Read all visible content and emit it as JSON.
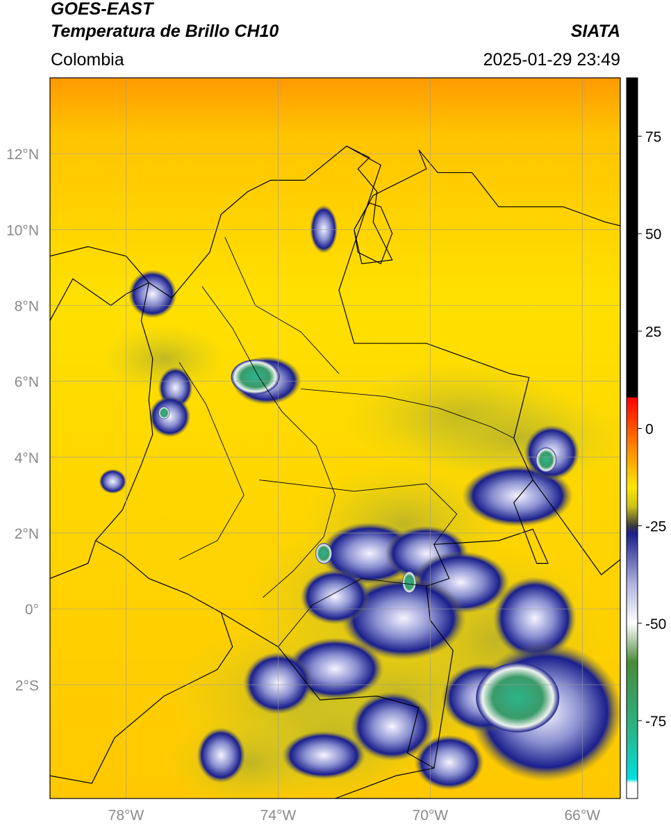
{
  "header": {
    "title": "GOES-EAST",
    "subtitle": "Temperatura de Brillo CH10",
    "org": "SIATA",
    "region": "Colombia",
    "datetime": "2025-01-29 23:49"
  },
  "map": {
    "lon_range": [
      -80,
      -65
    ],
    "lat_range": [
      -5,
      14
    ],
    "lat_ticks": [
      {
        "value": 12,
        "label": "12°N"
      },
      {
        "value": 10,
        "label": "10°N"
      },
      {
        "value": 8,
        "label": "8°N"
      },
      {
        "value": 6,
        "label": "6°N"
      },
      {
        "value": 4,
        "label": "4°N"
      },
      {
        "value": 2,
        "label": "2°N"
      },
      {
        "value": 0,
        "label": "0°"
      },
      {
        "value": -2,
        "label": "2°S"
      }
    ],
    "lon_ticks": [
      {
        "value": -78,
        "label": "78°W"
      },
      {
        "value": -74,
        "label": "74°W"
      },
      {
        "value": -70,
        "label": "70°W"
      },
      {
        "value": -66,
        "label": "66°W"
      }
    ],
    "gridlines": true,
    "colors": {
      "background": "#ffd200",
      "cold_cloud": "#1a1f8c",
      "coldest": "#2bb58a",
      "grid": "#9a9a9a"
    }
  },
  "colorbar": {
    "range": [
      -95,
      90
    ],
    "ticks": [
      {
        "value": 75,
        "label": "75"
      },
      {
        "value": 50,
        "label": "50"
      },
      {
        "value": 25,
        "label": "25"
      },
      {
        "value": 0,
        "label": "0"
      },
      {
        "value": -25,
        "label": "-25"
      },
      {
        "value": -50,
        "label": "-50"
      },
      {
        "value": -75,
        "label": "-75"
      }
    ],
    "stops": [
      {
        "value": 90,
        "color": "#000000"
      },
      {
        "value": 8,
        "color": "#000000"
      },
      {
        "value": 7.9,
        "color": "#ff0000"
      },
      {
        "value": -5,
        "color": "#ff8800"
      },
      {
        "value": -15,
        "color": "#ffe600"
      },
      {
        "value": -20,
        "color": "#ccc21a"
      },
      {
        "value": -25,
        "color": "#3a3a3a"
      },
      {
        "value": -27,
        "color": "#1a1f8c"
      },
      {
        "value": -40,
        "color": "#b0b4e0"
      },
      {
        "value": -50,
        "color": "#ffffff"
      },
      {
        "value": -60,
        "color": "#4a8a3a"
      },
      {
        "value": -78,
        "color": "#2bb58a"
      },
      {
        "value": -90,
        "color": "#00e0e0"
      },
      {
        "value": -91,
        "color": "#ffffff"
      },
      {
        "value": -95,
        "color": "#ffffff"
      }
    ]
  }
}
